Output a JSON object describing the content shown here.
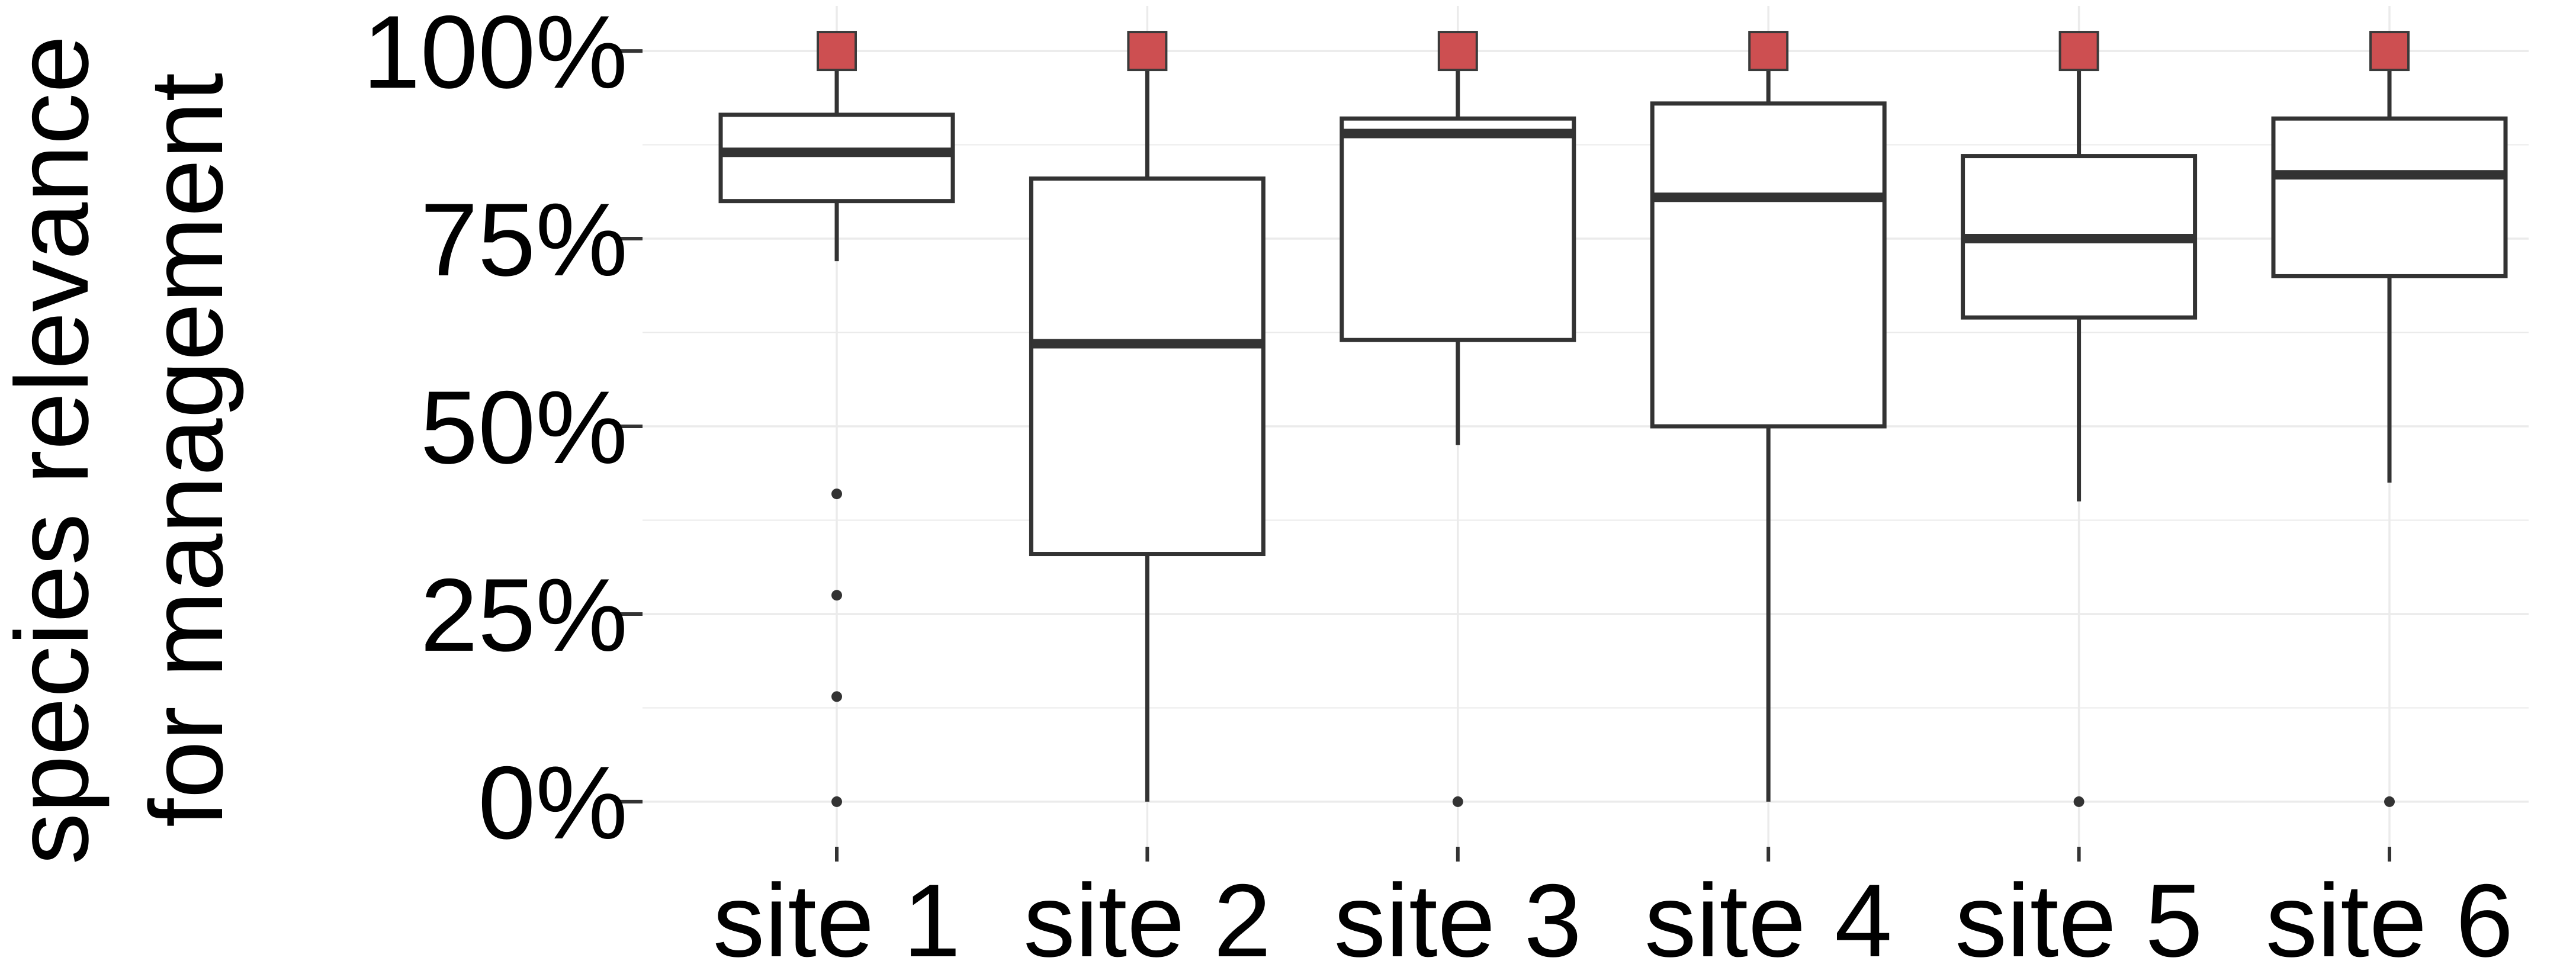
{
  "chart_data": {
    "type": "box",
    "title": "",
    "xlabel": "",
    "ylabel": [
      "species relevance",
      "for management"
    ],
    "ylim": [
      -6,
      106
    ],
    "yticks": [
      0,
      25,
      50,
      75,
      100
    ],
    "ytick_labels": [
      "0%",
      "25%",
      "50%",
      "75%",
      "100%"
    ],
    "grid": true,
    "categories": [
      "site 1",
      "site 2",
      "site 3",
      "site 4",
      "site 5",
      "site 6"
    ],
    "boxes": [
      {
        "category": "site 1",
        "whisker_low": 72,
        "q1": 80,
        "median": 86.5,
        "q3": 91.5,
        "whisker_high": 100,
        "outliers": [
          41,
          27.5,
          14,
          0
        ]
      },
      {
        "category": "site 2",
        "whisker_low": 0,
        "q1": 33,
        "median": 61,
        "q3": 83,
        "whisker_high": 100,
        "outliers": []
      },
      {
        "category": "site 3",
        "whisker_low": 47.5,
        "q1": 61.5,
        "median": 89,
        "q3": 91,
        "whisker_high": 100,
        "outliers": [
          0
        ]
      },
      {
        "category": "site 4",
        "whisker_low": 0,
        "q1": 50,
        "median": 80.5,
        "q3": 93,
        "whisker_high": 100,
        "outliers": []
      },
      {
        "category": "site 5",
        "whisker_low": 40,
        "q1": 64.5,
        "median": 75,
        "q3": 86,
        "whisker_high": 100,
        "outliers": [
          0
        ]
      },
      {
        "category": "site 6",
        "whisker_low": 42.5,
        "q1": 70,
        "median": 83.5,
        "q3": 91,
        "whisker_high": 100,
        "outliers": [
          0
        ]
      }
    ],
    "markers": [
      {
        "category": "site 1",
        "value": 100
      },
      {
        "category": "site 2",
        "value": 100
      },
      {
        "category": "site 3",
        "value": 100
      },
      {
        "category": "site 4",
        "value": 100
      },
      {
        "category": "site 5",
        "value": 100
      },
      {
        "category": "site 6",
        "value": 100
      }
    ],
    "colors": {
      "box_stroke": "#333333",
      "median": "#333333",
      "marker_fill": "#cd4f51",
      "marker_stroke": "#3a3a3a",
      "grid": "#ebebeb",
      "text": "#000000"
    }
  }
}
